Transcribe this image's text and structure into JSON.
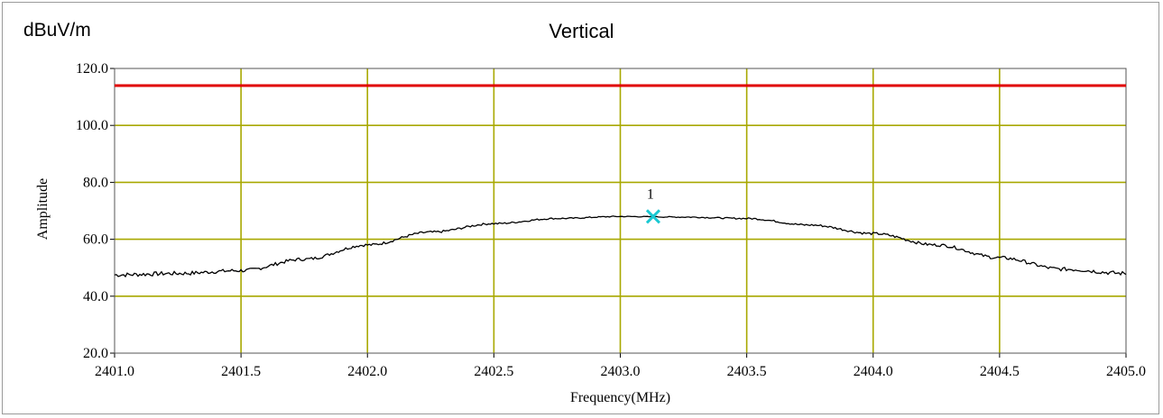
{
  "chart_data": {
    "type": "line",
    "title": "Vertical",
    "unit_label": "dBuV/m",
    "xlabel": "Frequency(MHz)",
    "ylabel": "Amplitude",
    "xlim": [
      2401.0,
      2405.0
    ],
    "ylim": [
      20.0,
      120.0
    ],
    "x_ticks": [
      "2401.0",
      "2401.5",
      "2402.0",
      "2402.5",
      "2403.0",
      "2403.5",
      "2404.0",
      "2404.5",
      "2405.0"
    ],
    "y_ticks": [
      "120.0",
      "100.0",
      "80.0",
      "60.0",
      "40.0",
      "20.0"
    ],
    "grid": true,
    "limit_line": {
      "value": 114.0,
      "color": "#e00000"
    },
    "series": [
      {
        "color": "#000000",
        "x": [
          2401.0,
          2401.25,
          2401.5,
          2401.75,
          2402.0,
          2402.25,
          2402.5,
          2402.75,
          2403.0,
          2403.25,
          2403.5,
          2403.75,
          2404.0,
          2404.25,
          2404.5,
          2404.75,
          2405.0
        ],
        "y": [
          47.5,
          48.0,
          49.0,
          53.0,
          58.0,
          62.5,
          65.5,
          67.3,
          68.0,
          67.8,
          67.3,
          65.0,
          62.0,
          58.0,
          53.5,
          49.5,
          48.0
        ]
      }
    ],
    "marker": {
      "label": "1",
      "x": 2403.13,
      "y": 68.0,
      "color": "#19c8d2"
    }
  }
}
